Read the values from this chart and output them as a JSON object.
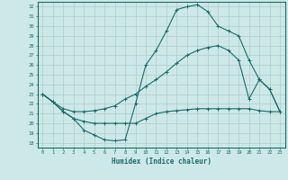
{
  "xlabel": "Humidex (Indice chaleur)",
  "xlim": [
    -0.5,
    23.5
  ],
  "ylim": [
    17.5,
    32.5
  ],
  "xticks": [
    0,
    1,
    2,
    3,
    4,
    5,
    6,
    7,
    8,
    9,
    10,
    11,
    12,
    13,
    14,
    15,
    16,
    17,
    18,
    19,
    20,
    21,
    22,
    23
  ],
  "yticks": [
    18,
    19,
    20,
    21,
    22,
    23,
    24,
    25,
    26,
    27,
    28,
    29,
    30,
    31,
    32
  ],
  "background_color": "#cde8e8",
  "grid_color": "#aacccc",
  "line_color": "#1a6b6b",
  "curve1_x": [
    0,
    1,
    2,
    3,
    4,
    5,
    6,
    7,
    8,
    9,
    10,
    11,
    12,
    13,
    14,
    15,
    16,
    17,
    18,
    19,
    20,
    21,
    22,
    23
  ],
  "curve1_y": [
    23.0,
    22.2,
    21.2,
    20.5,
    19.3,
    18.8,
    18.3,
    18.2,
    18.3,
    22.0,
    26.0,
    27.5,
    29.5,
    31.7,
    32.0,
    32.2,
    31.5,
    30.0,
    29.5,
    29.0,
    26.5,
    24.5,
    23.5,
    21.2
  ],
  "curve2_x": [
    0,
    1,
    2,
    3,
    4,
    5,
    6,
    7,
    8,
    9,
    10,
    11,
    12,
    13,
    14,
    15,
    16,
    17,
    18,
    19,
    20,
    21,
    22,
    23
  ],
  "curve2_y": [
    23.0,
    22.2,
    21.2,
    20.5,
    20.2,
    20.0,
    20.0,
    20.0,
    20.0,
    20.0,
    20.5,
    21.0,
    21.2,
    21.3,
    21.4,
    21.5,
    21.5,
    21.5,
    21.5,
    21.5,
    21.5,
    21.3,
    21.2,
    21.2
  ],
  "curve3_x": [
    0,
    1,
    2,
    3,
    4,
    5,
    6,
    7,
    8,
    9,
    10,
    11,
    12,
    13,
    14,
    15,
    16,
    17,
    18,
    19,
    20,
    21,
    22,
    23
  ],
  "curve3_y": [
    23.0,
    22.2,
    21.5,
    21.2,
    21.2,
    21.3,
    21.5,
    21.8,
    22.5,
    23.0,
    23.8,
    24.5,
    25.3,
    26.2,
    27.0,
    27.5,
    27.8,
    28.0,
    27.5,
    26.5,
    22.5,
    24.5,
    23.5,
    21.2
  ]
}
